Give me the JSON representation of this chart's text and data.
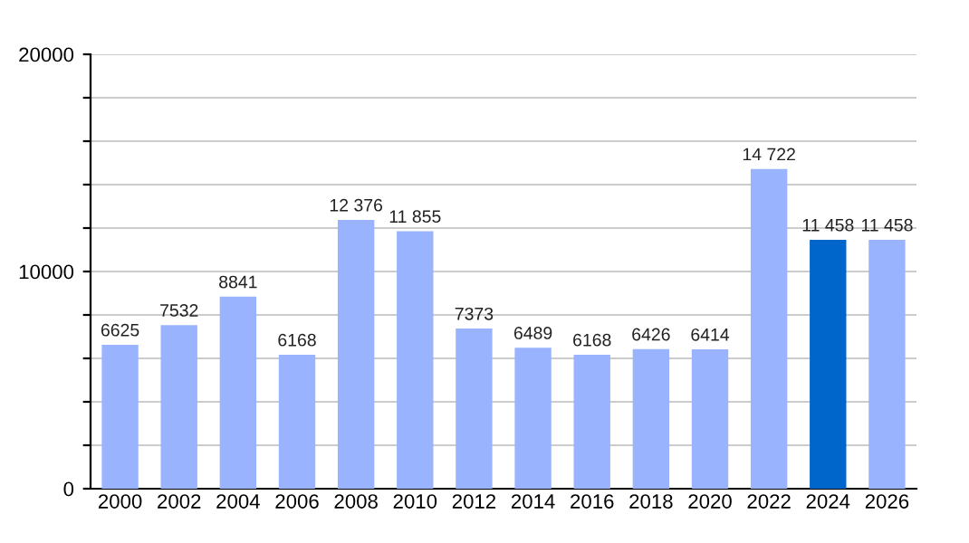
{
  "chart_data": {
    "type": "bar",
    "categories": [
      "2000",
      "2002",
      "2004",
      "2006",
      "2008",
      "2010",
      "2012",
      "2014",
      "2016",
      "2018",
      "2020",
      "2022",
      "2024",
      "2026"
    ],
    "values": [
      6625,
      7532,
      8841,
      6168,
      12376,
      11855,
      7373,
      6489,
      6168,
      6426,
      6414,
      14722,
      11458,
      11458
    ],
    "value_labels": [
      "6625",
      "7532",
      "8841",
      "6168",
      "12 376",
      "11 855",
      "7373",
      "6489",
      "6168",
      "6426",
      "6414",
      "14 722",
      "11 458",
      "11 458"
    ],
    "colors": [
      "#99b3ff",
      "#99b3ff",
      "#99b3ff",
      "#99b3ff",
      "#99b3ff",
      "#99b3ff",
      "#99b3ff",
      "#99b3ff",
      "#99b3ff",
      "#99b3ff",
      "#99b3ff",
      "#99b3ff",
      "#0066cc",
      "#99b3ff"
    ],
    "ylim": [
      0,
      20000
    ],
    "yticks": [
      0,
      {
        "value": 2000,
        "label": null
      },
      {
        "value": 4000,
        "label": null
      },
      {
        "value": 6000,
        "label": null
      },
      {
        "value": 8000,
        "label": null
      },
      10000,
      {
        "value": 12000,
        "label": null
      },
      {
        "value": 14000,
        "label": null
      },
      {
        "value": 16000,
        "label": null
      },
      {
        "value": 18000,
        "label": null
      },
      20000
    ],
    "grid": "y"
  }
}
